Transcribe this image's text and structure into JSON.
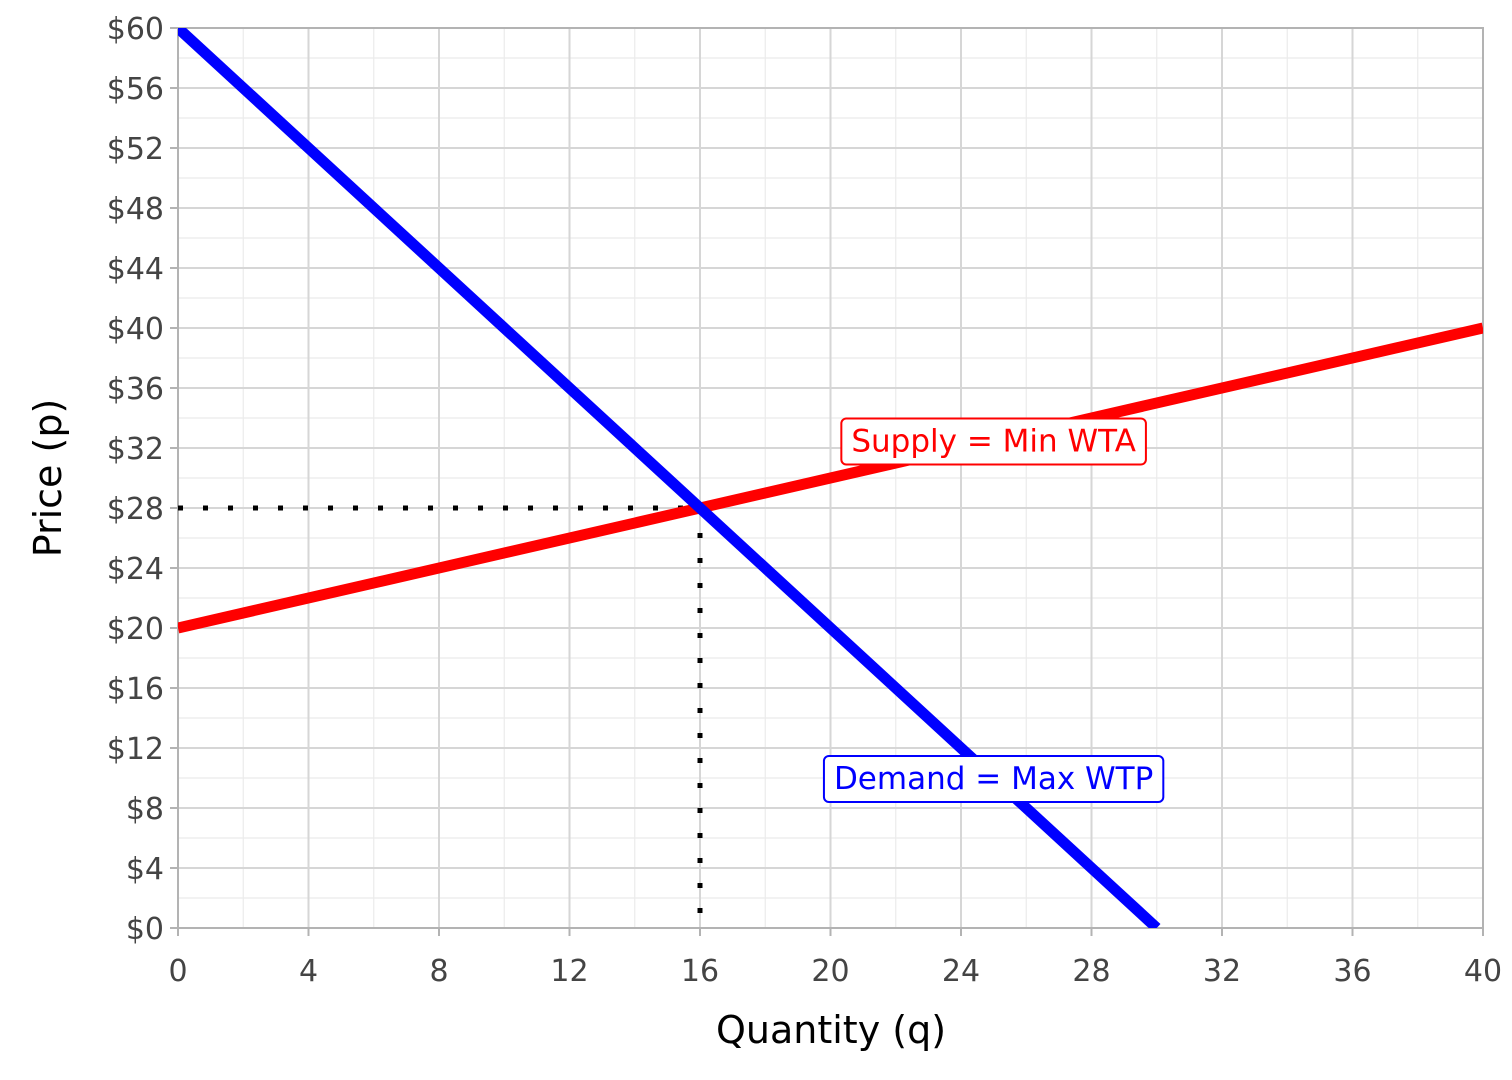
{
  "chart_data": {
    "type": "line",
    "xlabel": "Quantity (q)",
    "ylabel": "Price (p)",
    "xlim": [
      0,
      40
    ],
    "ylim": [
      0,
      60
    ],
    "x_ticks": [
      0,
      4,
      8,
      12,
      16,
      20,
      24,
      28,
      32,
      36,
      40
    ],
    "x_tick_labels": [
      "0",
      "4",
      "8",
      "12",
      "16",
      "20",
      "24",
      "28",
      "32",
      "36",
      "40"
    ],
    "y_ticks": [
      0,
      4,
      8,
      12,
      16,
      20,
      24,
      28,
      32,
      36,
      40,
      44,
      48,
      52,
      56,
      60
    ],
    "y_tick_labels": [
      "$0",
      "$4",
      "$8",
      "$12",
      "$16",
      "$20",
      "$24",
      "$28",
      "$32",
      "$36",
      "$40",
      "$44",
      "$48",
      "$52",
      "$56",
      "$60"
    ],
    "grid": true,
    "series": [
      {
        "name": "Supply = Min WTA",
        "color": "#ff0000",
        "x": [
          0,
          40
        ],
        "y": [
          20,
          40
        ]
      },
      {
        "name": "Demand = Max WTP",
        "color": "#0000ff",
        "x": [
          0,
          30
        ],
        "y": [
          60,
          0
        ]
      }
    ],
    "equilibrium": {
      "q": 16,
      "p": 28,
      "guide_style": "dotted",
      "guide_color": "#000000"
    },
    "annotations": [
      {
        "text": "Supply = Min WTA",
        "x": 25,
        "y": 32.5,
        "color": "#ff0000"
      },
      {
        "text": "Demand = Max WTP",
        "x": 25,
        "y": 10,
        "color": "#0000ff"
      }
    ]
  }
}
